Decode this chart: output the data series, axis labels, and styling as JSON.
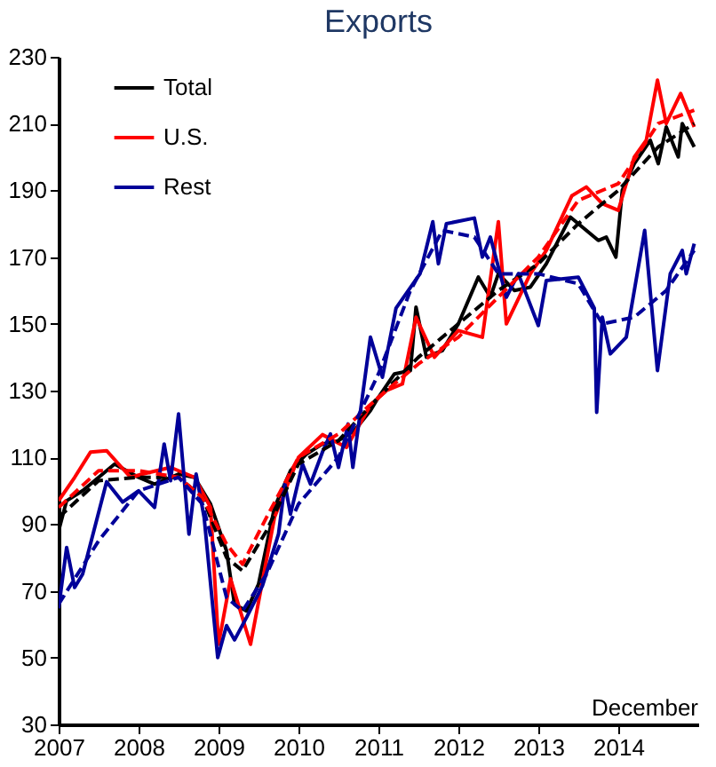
{
  "chart_data": {
    "type": "line",
    "title": "Exports",
    "annotations": [
      "December"
    ],
    "xlim": [
      2007,
      2015
    ],
    "xticks": [
      2007,
      2008,
      2009,
      2010,
      2011,
      2012,
      2013,
      2014
    ],
    "ylim": [
      30,
      230
    ],
    "yticks": [
      30,
      50,
      70,
      90,
      110,
      130,
      150,
      170,
      190,
      210,
      230
    ],
    "legend": "top left",
    "grid": false,
    "series": [
      {
        "name": "Total",
        "color": "#000000",
        "x": [
          2007.0,
          2007.1,
          2007.3,
          2007.5,
          2007.7,
          2008.0,
          2008.2,
          2008.5,
          2008.7,
          2008.9,
          2009.1,
          2009.2,
          2009.35,
          2009.5,
          2009.7,
          2009.9,
          2010.1,
          2010.3,
          2010.5,
          2010.7,
          2010.9,
          2011.0,
          2011.2,
          2011.4,
          2011.47,
          2011.6,
          2011.8,
          2012.0,
          2012.25,
          2012.4,
          2012.5,
          2012.7,
          2012.9,
          2013.1,
          2013.4,
          2013.5,
          2013.75,
          2013.85,
          2013.97,
          2014.05,
          2014.2,
          2014.4,
          2014.5,
          2014.6,
          2014.75,
          2014.8,
          2014.95
        ],
        "values": [
          88,
          97,
          100,
          104,
          108,
          104,
          102,
          105,
          104,
          96,
          82,
          66,
          64,
          72,
          95,
          106,
          111,
          114,
          115,
          118,
          124,
          128,
          135,
          136,
          155,
          140,
          142,
          150,
          164,
          158,
          165,
          160,
          161,
          168,
          182,
          180,
          175,
          176,
          170,
          190,
          198,
          205,
          198,
          209,
          200,
          210,
          203
        ]
      },
      {
        "name": "U.S.",
        "color": "#ff0000",
        "x": [
          2007.0,
          2007.2,
          2007.4,
          2007.6,
          2007.9,
          2008.05,
          2008.4,
          2008.7,
          2008.9,
          2009.0,
          2009.15,
          2009.4,
          2009.7,
          2010.0,
          2010.3,
          2010.6,
          2010.9,
          2011.1,
          2011.3,
          2011.47,
          2011.7,
          2012.0,
          2012.3,
          2012.5,
          2012.6,
          2012.9,
          2013.1,
          2013.42,
          2013.6,
          2013.8,
          2014.0,
          2014.2,
          2014.35,
          2014.49,
          2014.6,
          2014.78,
          2014.95
        ],
        "values": [
          97,
          104,
          111.6,
          112,
          104,
          105,
          107,
          104,
          95,
          54,
          73.6,
          54,
          92,
          110,
          116.8,
          113,
          125.6,
          130,
          132,
          152,
          140,
          148,
          146,
          180.6,
          150,
          165,
          172,
          188.4,
          191,
          186,
          184,
          200,
          205,
          223,
          210,
          219,
          209
        ]
      },
      {
        "name": "Rest",
        "color": "#000099",
        "x": [
          2007.0,
          2007.1,
          2007.2,
          2007.3,
          2007.6,
          2007.8,
          2008.0,
          2008.2,
          2008.32,
          2008.4,
          2008.5,
          2008.63,
          2008.72,
          2008.82,
          2008.99,
          2009.1,
          2009.2,
          2009.35,
          2009.55,
          2009.75,
          2009.83,
          2009.9,
          2010.05,
          2010.15,
          2010.3,
          2010.4,
          2010.5,
          2010.62,
          2010.68,
          2010.9,
          2011.05,
          2011.22,
          2011.52,
          2011.68,
          2011.75,
          2011.85,
          2012.2,
          2012.3,
          2012.4,
          2012.6,
          2012.75,
          2013.0,
          2013.1,
          2013.5,
          2013.7,
          2013.73,
          2013.8,
          2013.9,
          2014.1,
          2014.33,
          2014.49,
          2014.65,
          2014.8,
          2014.85,
          2014.95
        ],
        "values": [
          64.8,
          83,
          71,
          75,
          102.7,
          96.6,
          100,
          95,
          114,
          103,
          123,
          87,
          105,
          92,
          50,
          59.6,
          55.3,
          62,
          71.6,
          87,
          102,
          93,
          108,
          102,
          111.6,
          117,
          107,
          120,
          107,
          146,
          134,
          154.7,
          165,
          180.6,
          168,
          180,
          181.7,
          170,
          176,
          158,
          165,
          149.5,
          163,
          164,
          154.7,
          123.5,
          152,
          141,
          146,
          178,
          136,
          165,
          172,
          165,
          174
        ]
      },
      {
        "color": "#000000",
        "line_style": "dashed",
        "x": [
          2007.0,
          2007.5,
          2008.0,
          2008.5,
          2008.8,
          2009.1,
          2009.3,
          2009.6,
          2010.0,
          2010.5,
          2011.0,
          2011.5,
          2012.0,
          2012.5,
          2013.0,
          2013.5,
          2014.0,
          2014.5,
          2014.95
        ],
        "values": [
          92,
          103,
          104,
          104,
          98,
          80,
          76,
          88,
          108,
          115,
          128,
          140,
          150,
          160,
          168,
          180,
          190,
          203,
          210
        ]
      },
      {
        "color": "#ff0000",
        "line_style": "dashed",
        "x": [
          2007.0,
          2007.5,
          2008.0,
          2008.5,
          2008.8,
          2009.1,
          2009.3,
          2009.6,
          2010.0,
          2010.5,
          2011.0,
          2011.5,
          2012.0,
          2012.5,
          2013.0,
          2013.5,
          2014.0,
          2014.5,
          2014.95
        ],
        "values": [
          95,
          106,
          106,
          104,
          98,
          84,
          78,
          92,
          110,
          117,
          128,
          138,
          146,
          158,
          170,
          187,
          192,
          210,
          214
        ]
      },
      {
        "color": "#000099",
        "line_style": "dashed",
        "x": [
          2007.0,
          2007.5,
          2008.0,
          2008.5,
          2008.8,
          2009.1,
          2009.3,
          2009.6,
          2010.0,
          2010.5,
          2011.0,
          2011.4,
          2011.8,
          2012.2,
          2012.5,
          2013.0,
          2013.5,
          2013.8,
          2014.2,
          2014.6,
          2014.95
        ],
        "values": [
          66,
          85,
          100,
          104,
          96,
          68,
          64,
          75,
          96,
          110,
          135,
          160,
          178,
          176,
          165,
          165,
          162,
          150,
          152,
          160,
          172
        ]
      }
    ]
  }
}
